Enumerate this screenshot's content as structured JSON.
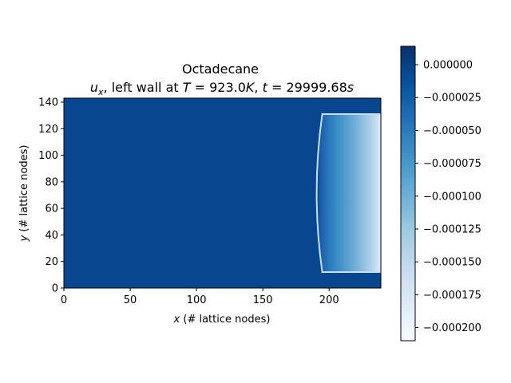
{
  "chart_data": {
    "type": "heatmap",
    "title_line1": "Octadecane",
    "title_line2_parts": {
      "u": "u",
      "x_sub": "x",
      "mid": ", left wall at ",
      "T": "T",
      "eq_T": " = 923.0",
      "K": "K",
      "comma": ", ",
      "t": "t",
      "eq_t": " = 29999.68",
      "s": "s"
    },
    "xlabel_var": "x",
    "xlabel_rest": " (# lattice nodes)",
    "ylabel_var": "y",
    "ylabel_rest": " (# lattice nodes)",
    "xlim": [
      0,
      239
    ],
    "ylim": [
      0,
      143
    ],
    "xticks": [
      0,
      50,
      100,
      150,
      200
    ],
    "yticks": [
      0,
      20,
      40,
      60,
      80,
      100,
      120,
      140
    ],
    "colorbar": {
      "vmin": -0.00021,
      "vmax": 1.4e-05,
      "ticks": [
        0.0,
        -2.5e-05,
        -5e-05,
        -7.5e-05,
        -0.0001,
        -0.000125,
        -0.00015,
        -0.000175,
        -0.0002
      ],
      "tick_labels": [
        "0.000000",
        "−0.000025",
        "−0.000050",
        "−0.000075",
        "−0.000100",
        "−0.000125",
        "−0.000150",
        "−0.000175",
        "−0.000200"
      ],
      "colormap": "Blues_r",
      "color_high": "#08306b",
      "color_low": "#f7fbff"
    },
    "field": {
      "background_value": 0.0,
      "liquid_region": {
        "x_start": 190,
        "x_end": 239,
        "y_bottom": 12,
        "y_top": 131
      },
      "min_value_at_right_wall": -0.00021
    }
  }
}
